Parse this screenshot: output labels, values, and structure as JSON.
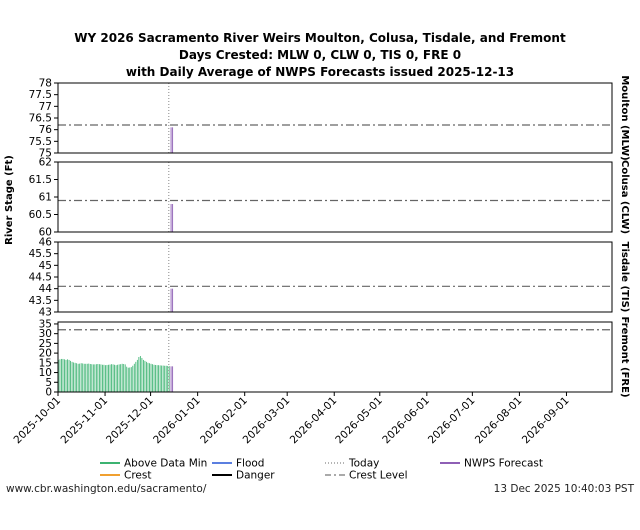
{
  "footer": {
    "url": "www.cbr.washington.edu/sacramento/",
    "timestamp": "13 Dec 2025 10:40:03 PST"
  },
  "chart_data": {
    "type": "bar",
    "title_lines": [
      "WY 2026 Sacramento River Weirs Moulton, Colusa, Tisdale, and Fremont",
      "Days Crested: MLW 0, CLW 0, TIS 0, FRE 0",
      "with Daily Average of NWPS Forecasts issued 2025-12-13"
    ],
    "ylabel": "River Stage (Ft)",
    "x_range": [
      "2025-10-01",
      "2026-09-30"
    ],
    "x_ticks": [
      "2025-10-01",
      "2025-11-01",
      "2025-12-01",
      "2026-01-01",
      "2026-02-01",
      "2026-03-01",
      "2026-04-01",
      "2026-05-01",
      "2026-06-01",
      "2026-07-01",
      "2026-08-01",
      "2026-09-01"
    ],
    "today": "2025-12-13",
    "panels": [
      {
        "name": "Moulton (MLW)",
        "ylim": [
          75,
          78
        ],
        "yticks": [
          "78",
          "77.5",
          "77",
          "76.5",
          "76",
          "75.5",
          "75"
        ],
        "crest": 76.2,
        "observed": [],
        "forecast": [
          {
            "date": "2025-12-14",
            "value": 76.1
          },
          {
            "date": "2025-12-15",
            "value": 76.1
          }
        ]
      },
      {
        "name": "Colusa (CLW)",
        "ylim": [
          60,
          62
        ],
        "yticks": [
          "62",
          "61.5",
          "61",
          "60.5",
          "60"
        ],
        "crest": 60.9,
        "observed": [],
        "forecast": [
          {
            "date": "2025-12-14",
            "value": 60.8
          },
          {
            "date": "2025-12-15",
            "value": 60.8
          }
        ]
      },
      {
        "name": "Tisdale (TIS)",
        "ylim": [
          43,
          46
        ],
        "yticks": [
          "46",
          "45.5",
          "45",
          "44.5",
          "44",
          "43.5",
          "43"
        ],
        "crest": 44.1,
        "observed": [],
        "forecast": [
          {
            "date": "2025-12-14",
            "value": 44.0
          },
          {
            "date": "2025-12-15",
            "value": 44.0
          }
        ]
      },
      {
        "name": "Fremont (FRE)",
        "ylim": [
          0,
          36
        ],
        "yticks": [
          "35",
          "30",
          "25",
          "20",
          "15",
          "10",
          "5",
          "0"
        ],
        "crest": 32,
        "observed_start": "2025-10-01",
        "observed": [
          16.5,
          16.8,
          17.0,
          17.0,
          16.8,
          16.5,
          16.8,
          16.5,
          16.0,
          15.5,
          15.2,
          15.0,
          14.8,
          14.5,
          14.6,
          14.8,
          14.7,
          14.5,
          14.5,
          14.5,
          14.6,
          14.4,
          14.3,
          14.2,
          14.2,
          14.3,
          14.4,
          14.3,
          14.2,
          14.0,
          14.0,
          13.8,
          13.9,
          14.0,
          14.1,
          14.3,
          14.2,
          14.0,
          13.8,
          14.0,
          14.2,
          14.3,
          14.5,
          14.4,
          14.2,
          13.0,
          12.5,
          12.6,
          12.8,
          13.5,
          14.5,
          15.5,
          16.5,
          18.0,
          18.5,
          17.5,
          16.5,
          16.0,
          15.5,
          15.0,
          14.8,
          14.5,
          14.3,
          14.0,
          13.9,
          13.8,
          13.8,
          13.7,
          13.6,
          13.6,
          13.5,
          13.5,
          13.4,
          13.3
        ],
        "forecast": [
          {
            "date": "2025-12-14",
            "value": 13.2
          },
          {
            "date": "2025-12-15",
            "value": 13.2
          }
        ]
      }
    ],
    "legend": [
      {
        "label": "Above Data Min",
        "color": "#3cb371",
        "style": "solid"
      },
      {
        "label": "Flood",
        "color": "#5b7fe0",
        "style": "solid"
      },
      {
        "label": "Today",
        "color": "#888888",
        "style": "dotted"
      },
      {
        "label": "NWPS Forecast",
        "color": "#8e5fb5",
        "style": "solid"
      },
      {
        "label": "Crest",
        "color": "#f0a030",
        "style": "solid"
      },
      {
        "label": "Danger",
        "color": "#000000",
        "style": "solid"
      },
      {
        "label": "Crest Level",
        "color": "#777777",
        "style": "dashdot"
      }
    ],
    "colors": {
      "observed": "#3cb371",
      "forecast": "#8e5fb5",
      "crest_line": "#666666",
      "today_line": "#888888"
    }
  }
}
